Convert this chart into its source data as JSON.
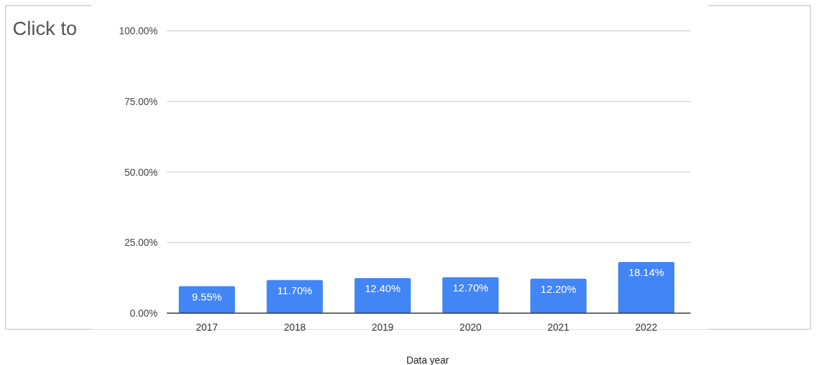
{
  "chart_data": {
    "type": "bar",
    "xlabel": "Data year",
    "annotations": [
      "Click to"
    ],
    "categories": [
      "2017",
      "2018",
      "2019",
      "2020",
      "2021",
      "2022"
    ],
    "values": [
      9.55,
      11.7,
      12.4,
      12.7,
      12.2,
      18.14
    ],
    "value_labels": [
      "9.55%",
      "11.70%",
      "12.40%",
      "12.70%",
      "12.20%",
      "18.14%"
    ],
    "color": "#4285f4",
    "ylim": [
      0,
      100
    ],
    "yticks": [
      {
        "value": 0,
        "label": "0.00%"
      },
      {
        "value": 25,
        "label": "25.00%"
      },
      {
        "value": 50,
        "label": "50.00%"
      },
      {
        "value": 75,
        "label": "75.00%"
      },
      {
        "value": 100,
        "label": "100.00%"
      }
    ],
    "grid": "y"
  }
}
